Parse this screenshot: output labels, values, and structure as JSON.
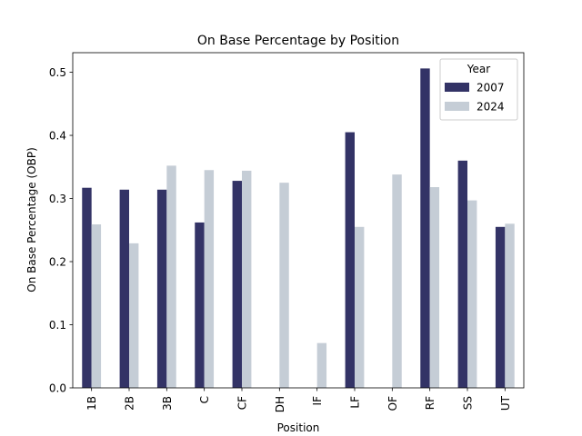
{
  "chart_data": {
    "type": "bar",
    "title": "On Base Percentage by Position",
    "xlabel": "Position",
    "ylabel": "On Base Percentage (OBP)",
    "categories": [
      "1B",
      "2B",
      "3B",
      "C",
      "CF",
      "DH",
      "IF",
      "LF",
      "OF",
      "RF",
      "SS",
      "UT"
    ],
    "series": [
      {
        "name": "2007",
        "color": "#333366",
        "values": [
          0.317,
          0.314,
          0.314,
          0.262,
          0.328,
          null,
          null,
          0.405,
          null,
          0.506,
          0.36,
          0.255
        ]
      },
      {
        "name": "2024",
        "color": "#c5cdd6",
        "values": [
          0.259,
          0.229,
          0.352,
          0.345,
          0.344,
          0.325,
          0.071,
          0.255,
          0.338,
          0.318,
          0.297,
          0.26
        ]
      }
    ],
    "ylim": [
      0,
      0.531
    ],
    "yticks": [
      0.0,
      0.1,
      0.2,
      0.3,
      0.4,
      0.5
    ],
    "ytick_labels": [
      "0.0",
      "0.1",
      "0.2",
      "0.3",
      "0.4",
      "0.5"
    ],
    "legend": {
      "title": "Year",
      "position": "top-right"
    },
    "grid": false
  }
}
